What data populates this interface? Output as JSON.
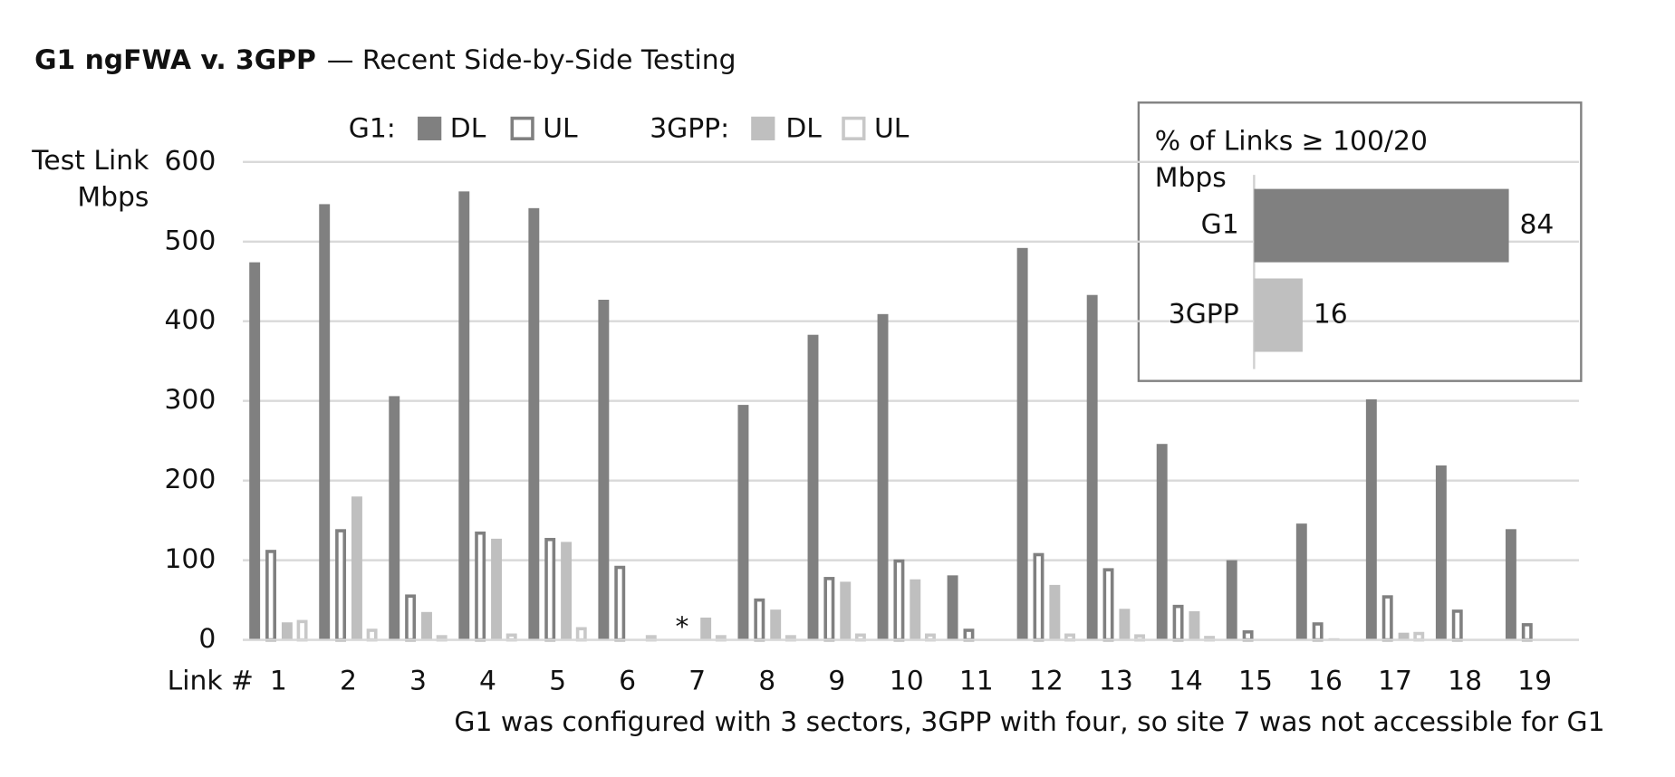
{
  "chart_data": {
    "type": "bar",
    "title": "G1 ngFWA v. 3GPP",
    "subtitle": "— Recent Side-by-Side Testing",
    "y_label": "Test Link Mbps",
    "x_label": "Link #",
    "categories": [
      "1",
      "2",
      "3",
      "4",
      "5",
      "6",
      "7",
      "8",
      "9",
      "10",
      "11",
      "12",
      "13",
      "14",
      "15",
      "16",
      "17",
      "18",
      "19"
    ],
    "series": [
      {
        "group": "G1:",
        "name": "DL",
        "color": "#808080",
        "filled": true,
        "values": [
          474,
          547,
          306,
          563,
          542,
          427,
          null,
          295,
          383,
          409,
          81,
          492,
          433,
          246,
          100,
          146,
          302,
          219,
          139
        ]
      },
      {
        "group": "G1:",
        "name": "UL",
        "color": "#808080",
        "filled": false,
        "values": [
          111,
          137,
          55,
          134,
          126,
          91,
          null,
          50,
          77,
          99,
          12,
          107,
          88,
          42,
          10,
          20,
          54,
          36,
          19
        ]
      },
      {
        "group": "3GPP:",
        "name": "DL",
        "color": "#bfbfbf",
        "filled": true,
        "values": [
          22,
          180,
          35,
          127,
          123,
          1,
          28,
          38,
          73,
          76,
          0,
          69,
          39,
          36,
          0,
          2,
          9,
          0,
          0
        ]
      },
      {
        "group": "3GPP:",
        "name": "UL",
        "color": "#c8c8c8",
        "filled": false,
        "values": [
          23,
          12,
          4,
          6,
          14,
          4,
          4,
          4,
          6,
          6,
          0,
          6,
          5,
          3,
          0,
          0,
          8,
          0,
          0
        ]
      }
    ],
    "ylim": [
      0,
      600
    ],
    "yticks": [
      0,
      100,
      200,
      300,
      400,
      500,
      600
    ],
    "grid": true,
    "annotations": [
      {
        "text": "*",
        "x": "7"
      }
    ],
    "note": "G1 was configured with 3 sectors, 3GPP with four, so site 7 was not accessible for G1",
    "inset": {
      "type": "bar",
      "orientation": "horizontal",
      "title": "% of Links ≥ 100/20 Mbps",
      "categories": [
        "G1",
        "3GPP"
      ],
      "values": [
        84,
        16
      ],
      "colors": [
        "#808080",
        "#bfbfbf"
      ],
      "xlim": [
        0,
        100
      ]
    }
  }
}
